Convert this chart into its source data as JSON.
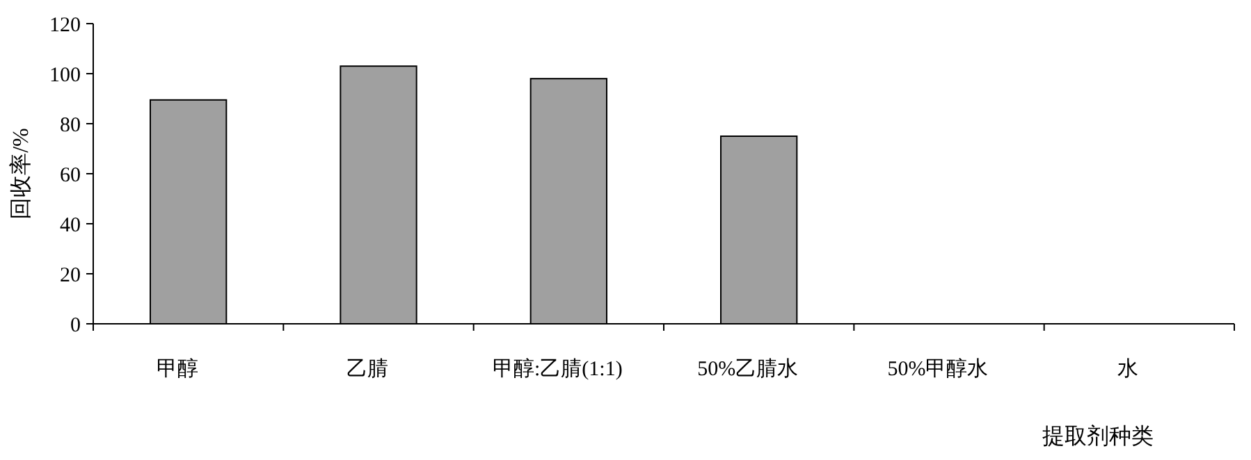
{
  "chart_data": {
    "type": "bar",
    "xlabel": "提取剂种类",
    "ylabel": "回收率/%",
    "categories": [
      "甲醇",
      "乙腈",
      "甲醇:乙腈(1:1)",
      "50%乙腈水",
      "50%甲醇水",
      "水"
    ],
    "values": [
      89.5,
      103,
      98,
      75,
      0,
      0
    ],
    "color": "#a0a0a0",
    "ylim": [
      0,
      120
    ],
    "yticks": [
      0,
      20,
      40,
      60,
      80,
      100,
      120
    ],
    "grid": false
  }
}
